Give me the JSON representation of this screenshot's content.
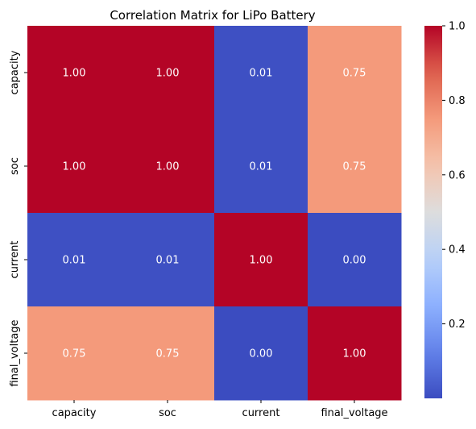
{
  "chart_data": {
    "type": "heatmap",
    "title": "Correlation Matrix for LiPo Battery",
    "xlabel": "",
    "ylabel": "",
    "rows": [
      "capacity",
      "soc",
      "current",
      "final_voltage"
    ],
    "columns": [
      "capacity",
      "soc",
      "current",
      "final_voltage"
    ],
    "values": [
      [
        1.0,
        1.0,
        0.01,
        0.75
      ],
      [
        1.0,
        1.0,
        0.01,
        0.75
      ],
      [
        0.01,
        0.01,
        1.0,
        0.0
      ],
      [
        0.75,
        0.75,
        0.0,
        1.0
      ]
    ],
    "value_format": "0.00",
    "colormap": "coolwarm",
    "color_range": [
      0.0,
      1.0
    ],
    "colorbar": {
      "position": "right",
      "ticks": [
        0.2,
        0.4,
        0.6,
        0.8,
        1.0
      ],
      "tick_labels": [
        "0.2",
        "0.4",
        "0.6",
        "0.8",
        "1.0"
      ]
    },
    "grid": false,
    "legend": "none"
  }
}
